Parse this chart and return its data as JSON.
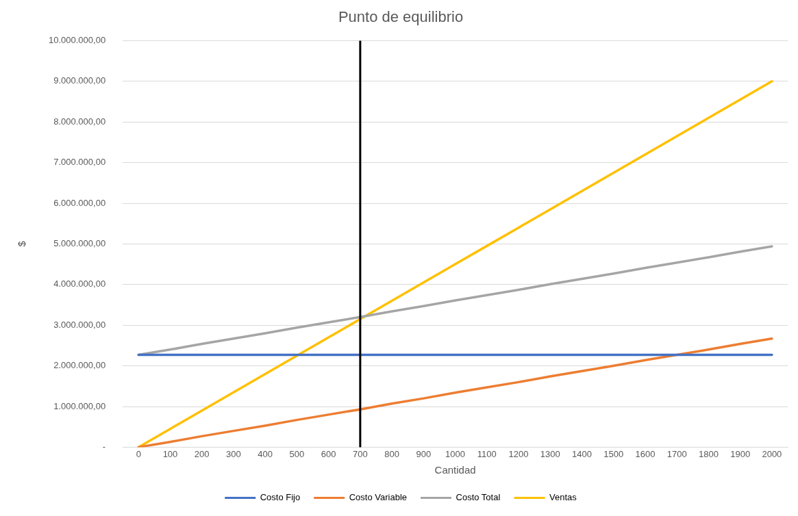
{
  "chart_data": {
    "type": "line",
    "title": "Punto de equilibrio",
    "xlabel": "Cantidad",
    "ylabel": "$",
    "x": [
      0,
      100,
      200,
      300,
      400,
      500,
      600,
      700,
      800,
      900,
      1000,
      1100,
      1200,
      1300,
      1400,
      1500,
      1600,
      1700,
      1800,
      1900,
      2000
    ],
    "series": [
      {
        "name": "Costo Fijo",
        "color": "#4472c4",
        "values": [
          2270000,
          2270000,
          2270000,
          2270000,
          2270000,
          2270000,
          2270000,
          2270000,
          2270000,
          2270000,
          2270000,
          2270000,
          2270000,
          2270000,
          2270000,
          2270000,
          2270000,
          2270000,
          2270000,
          2270000,
          2270000
        ]
      },
      {
        "name": "Costo Variable",
        "color": "#ed7d31",
        "values": [
          0,
          130000,
          270000,
          400000,
          530000,
          670000,
          800000,
          930000,
          1070000,
          1200000,
          1340000,
          1470000,
          1600000,
          1740000,
          1870000,
          2000000,
          2140000,
          2270000,
          2400000,
          2540000,
          2670000
        ]
      },
      {
        "name": "Costo Total",
        "color": "#a5a5a5",
        "values": [
          2270000,
          2400000,
          2540000,
          2670000,
          2800000,
          2940000,
          3070000,
          3200000,
          3340000,
          3470000,
          3610000,
          3740000,
          3870000,
          4010000,
          4140000,
          4270000,
          4410000,
          4540000,
          4670000,
          4810000,
          4940000
        ]
      },
      {
        "name": "Ventas",
        "color": "#ffc000",
        "values": [
          0,
          450000,
          900000,
          1350000,
          1800000,
          2250000,
          2700000,
          3150000,
          3600000,
          4050000,
          4500000,
          4950000,
          5400000,
          5850000,
          6300000,
          6750000,
          7200000,
          7650000,
          8100000,
          8550000,
          9000000
        ]
      }
    ],
    "xlim": [
      -50,
      2050
    ],
    "xticks": [
      0,
      100,
      200,
      300,
      400,
      500,
      600,
      700,
      800,
      900,
      1000,
      1100,
      1200,
      1300,
      1400,
      1500,
      1600,
      1700,
      1800,
      1900,
      2000
    ],
    "ylim": [
      0,
      10000000
    ],
    "yticks": [
      {
        "value": 0,
        "label": "-"
      },
      {
        "value": 1000000,
        "label": "1.000.000,00"
      },
      {
        "value": 2000000,
        "label": "2.000.000,00"
      },
      {
        "value": 3000000,
        "label": "3.000.000,00"
      },
      {
        "value": 4000000,
        "label": "4.000.000,00"
      },
      {
        "value": 5000000,
        "label": "5.000.000,00"
      },
      {
        "value": 6000000,
        "label": "6.000.000,00"
      },
      {
        "value": 7000000,
        "label": "7.000.000,00"
      },
      {
        "value": 8000000,
        "label": "8.000.000,00"
      },
      {
        "value": 9000000,
        "label": "9.000.000,00"
      },
      {
        "value": 10000000,
        "label": "10.000.000,00"
      }
    ],
    "ref_lines": [
      {
        "axis": "x",
        "value": 700,
        "color": "#000000"
      }
    ],
    "grid": "y",
    "legend": "bottom",
    "marker": "none",
    "line_style": "solid"
  }
}
